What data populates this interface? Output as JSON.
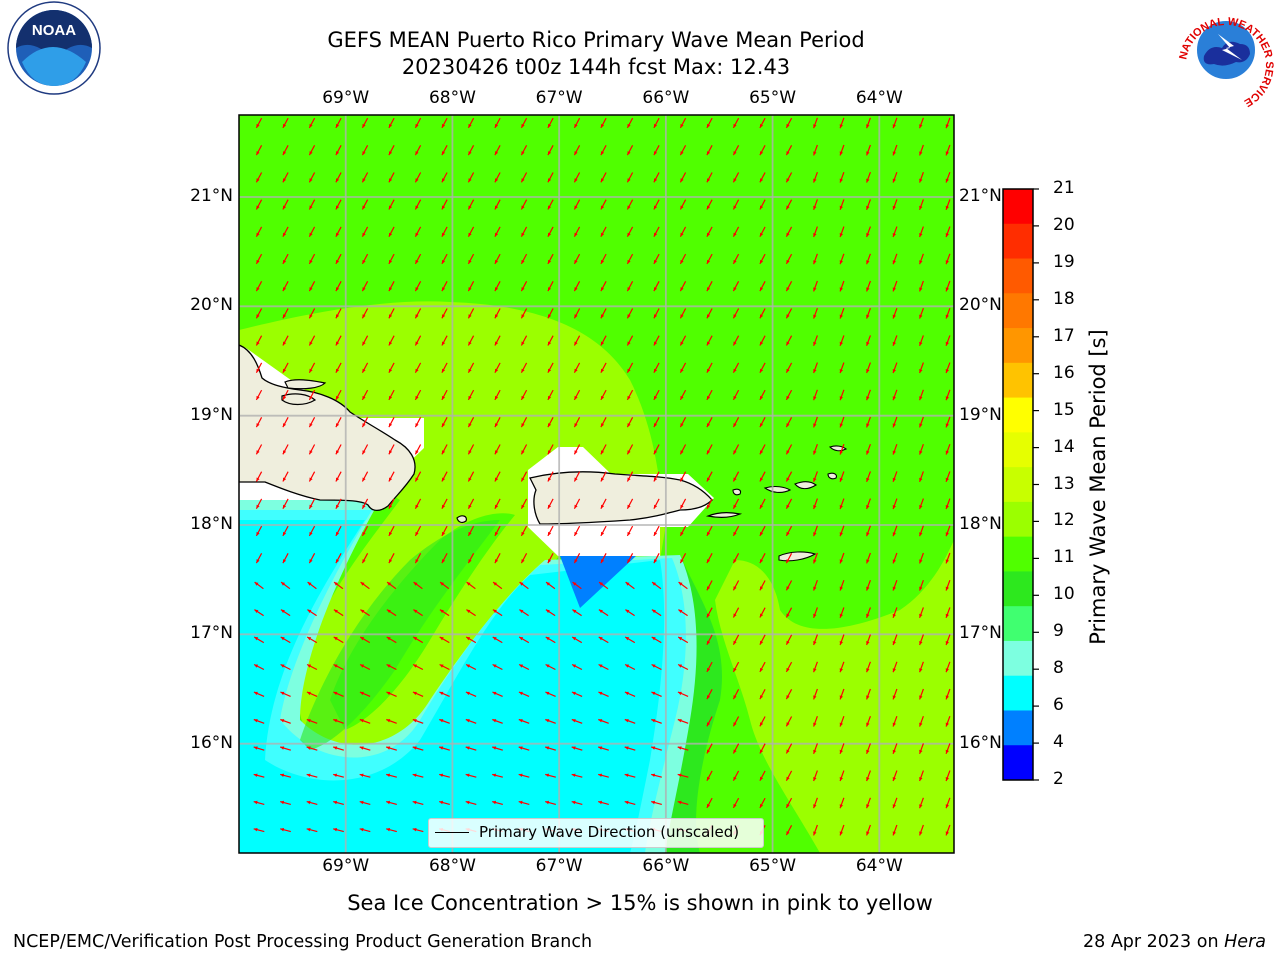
{
  "title_line1": "GEFS MEAN Puerto Rico Primary Wave Mean Period",
  "title_line2": "20230426 t00z 144h fcst   Max: 12.43",
  "map": {
    "lon_ticks": [
      "69°W",
      "68°W",
      "67°W",
      "66°W",
      "65°W",
      "64°W"
    ],
    "lat_ticks": [
      "21°N",
      "20°N",
      "19°N",
      "18°N",
      "17°N",
      "16°N"
    ],
    "lon_range": [
      -70.0,
      -63.3
    ],
    "lat_range": [
      15.0,
      21.75
    ],
    "gridlines": true,
    "arrow_color": "#ff0000",
    "land_color": "#efeedd"
  },
  "colorbar": {
    "label": "Primary Wave Mean Period [s]",
    "ticks": [
      "21",
      "20",
      "19",
      "18",
      "17",
      "16",
      "15",
      "14",
      "13",
      "12",
      "11",
      "10",
      "9",
      "8",
      "6",
      "4",
      "2"
    ],
    "colors": [
      "#ff0000",
      "#ff2d00",
      "#ff5a00",
      "#ff7800",
      "#ff9600",
      "#ffc300",
      "#ffff00",
      "#e6ff00",
      "#c8ff00",
      "#9bff00",
      "#50ff00",
      "#2de81e",
      "#40ff70",
      "#7dffe0",
      "#00ffff",
      "#0080ff",
      "#0000ff"
    ],
    "placement": "right"
  },
  "legend": {
    "label": "Primary Wave Direction (unscaled)",
    "placement": "lower-center"
  },
  "note": "Sea Ice Concentration > 15% is shown in pink to yellow",
  "footer": {
    "left": "NCEP/EMC/Verification Post Processing Product Generation Branch",
    "date": "28 Apr 2023 on",
    "host": "Hera"
  },
  "logos": {
    "left": "NOAA",
    "right_ring": "NATIONAL WEATHER SERVICE"
  }
}
